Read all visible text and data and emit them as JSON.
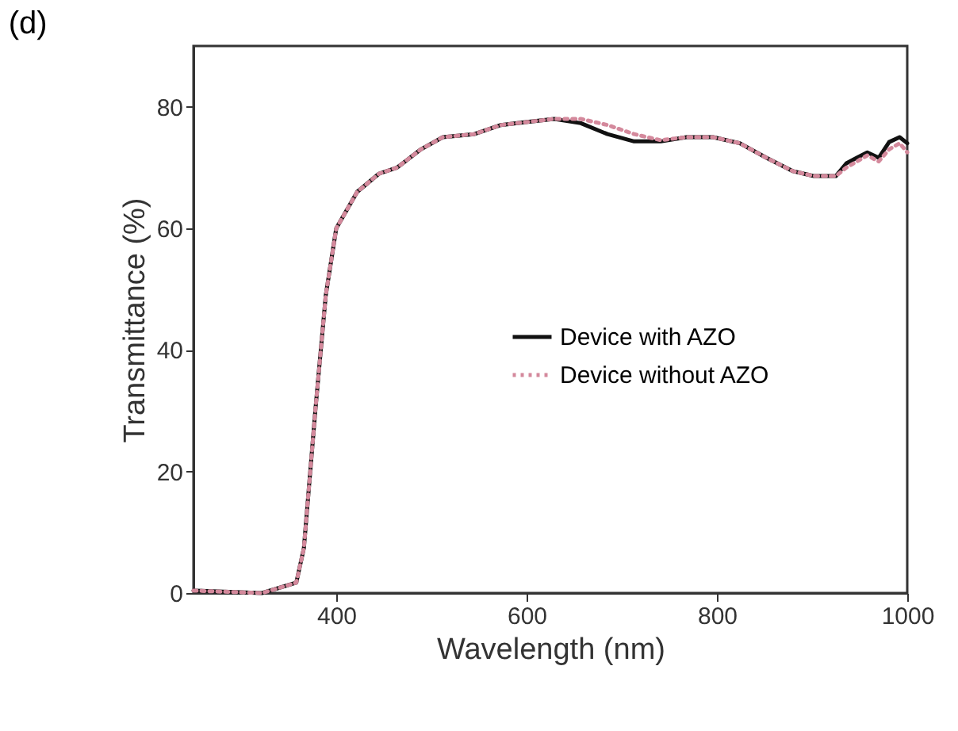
{
  "chart_data": {
    "type": "line",
    "title": "(d)",
    "xlabel": "Wavelength (nm)",
    "ylabel": "Transmittance (%)",
    "x": [
      250,
      322,
      358,
      366,
      378,
      389,
      400,
      422,
      445,
      464,
      489,
      512,
      545,
      573,
      601,
      629,
      657,
      685,
      713,
      741,
      768,
      796,
      824,
      852,
      880,
      902,
      925,
      936,
      947,
      958,
      970,
      981,
      992,
      1000
    ],
    "series": [
      {
        "name": "Device with AZO",
        "color": "#111111",
        "line_style": "solid",
        "values": [
          0.4,
          0,
          1.7,
          7.4,
          30,
          49,
          60,
          66,
          69,
          70,
          73,
          75,
          75.5,
          77,
          77.5,
          78,
          77.3,
          75.5,
          74.3,
          74.3,
          75,
          75,
          74,
          71.6,
          69.4,
          68.6,
          68.6,
          70.7,
          71.6,
          72.5,
          71.6,
          74.2,
          75,
          74
        ]
      },
      {
        "name": "Device without AZO",
        "color": "#d4899c",
        "line_style": "dotted",
        "values": [
          0.4,
          0,
          1.7,
          7.4,
          30,
          49,
          60,
          66,
          69,
          70,
          73,
          75,
          75.5,
          77,
          77.5,
          78,
          78,
          77,
          75.5,
          74.5,
          75,
          75,
          74,
          71.6,
          69.4,
          68.6,
          68.6,
          70,
          71,
          72,
          71,
          73,
          74,
          72.5
        ]
      }
    ],
    "xlim": [
      250,
      1000
    ],
    "xticks": [
      400,
      600,
      800,
      1000
    ],
    "ylim": [
      0,
      90
    ],
    "yticks": [
      0,
      20,
      40,
      60,
      80
    ],
    "grid": false,
    "legend": "right"
  }
}
